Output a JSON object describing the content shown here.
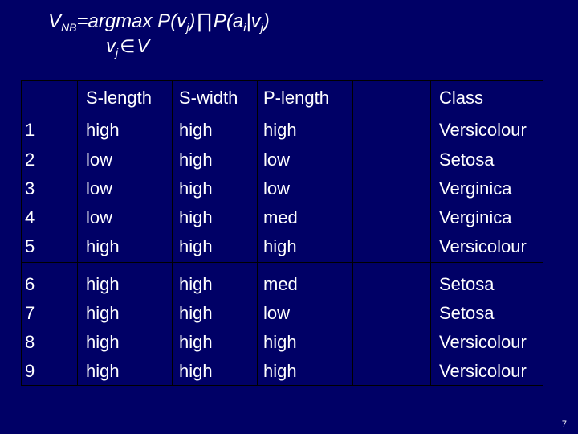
{
  "formula": {
    "lhs": "V",
    "lhs_sub": "NB",
    "text_a": "=argmax P(v",
    "sub_j1": "j",
    "text_b": ")",
    "product_symbol": "∏",
    "text_c": "P(a",
    "sub_i": "i",
    "text_d": "|v",
    "sub_j2": "j",
    "text_e": ")",
    "line2_v": "v",
    "line2_sub": "j",
    "element_symbol": "∈",
    "line2_set": "V"
  },
  "table": {
    "headers": [
      "",
      "S-length",
      "S-width",
      "P-length",
      "",
      "Class"
    ],
    "rows": [
      [
        "1",
        "high",
        "high",
        "high",
        "",
        "Versicolour"
      ],
      [
        "2",
        "low",
        "high",
        "low",
        "",
        "Setosa"
      ],
      [
        "3",
        "low",
        "high",
        "low",
        "",
        "Verginica"
      ],
      [
        "4",
        "low",
        "high",
        "med",
        "",
        "Verginica"
      ],
      [
        "5",
        "high",
        "high",
        "high",
        "",
        "Versicolour"
      ],
      [
        "6",
        "high",
        "high",
        "med",
        "",
        "Setosa"
      ],
      [
        "7",
        "high",
        "high",
        "low",
        "",
        "Setosa"
      ],
      [
        "8",
        "high",
        "high",
        "high",
        "",
        "Versicolour"
      ],
      [
        "9",
        "high",
        "high",
        "high",
        "",
        "Versicolour"
      ]
    ]
  },
  "page_number": "7"
}
